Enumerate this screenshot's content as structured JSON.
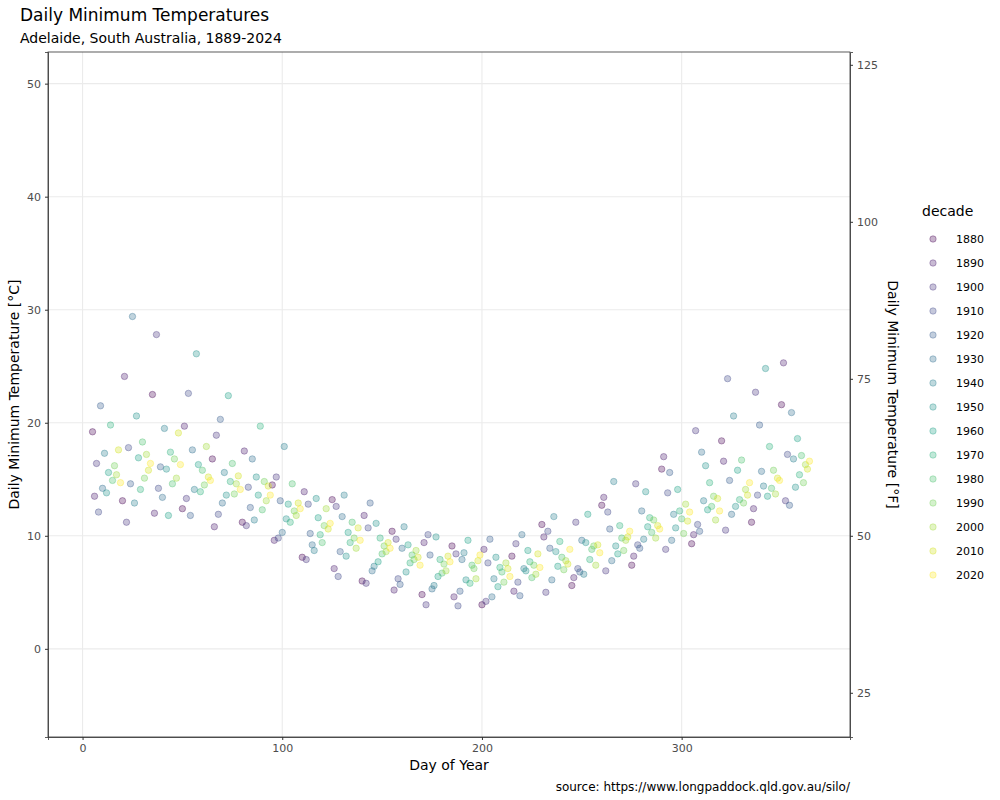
{
  "chart_data": {
    "type": "scatter",
    "title": "Daily Minimum Temperatures",
    "subtitle": "Adelaide, South Australia, 1889-2024",
    "x_label": "Day of Year",
    "y_label": "Daily Minimum Temperature [°C]",
    "y2_label": "Daily Minimum Temperature [°F]",
    "caption": "source: https://www.longpaddock.qld.gov.au/silo/",
    "legend_title": "decade",
    "legend": "right",
    "grid": true,
    "marker": "circle",
    "xlim": [
      -17.3,
      384.3
    ],
    "xticks": [
      0,
      100,
      200,
      300
    ],
    "ylim": [
      -7.8,
      52.8
    ],
    "yticks": [
      0,
      10,
      20,
      30,
      40,
      50
    ],
    "y2lim": [
      17.96,
      127.04
    ],
    "y2ticks": [
      25,
      50,
      75,
      100,
      125
    ],
    "series": [
      {
        "name": "1880",
        "color": "#440154",
        "x": [
          5,
          20,
          35,
          50,
          65,
          80,
          95,
          110,
          125,
          140,
          155,
          170,
          185,
          200,
          215,
          230,
          245,
          260,
          275,
          290,
          305,
          320,
          335,
          350
        ],
        "values": [
          19.2,
          13.1,
          22.5,
          12.4,
          16.8,
          11.2,
          14.5,
          8.1,
          13.2,
          6.0,
          10.4,
          4.8,
          9.1,
          3.9,
          8.2,
          11.0,
          5.6,
          12.7,
          7.4,
          15.9,
          9.3,
          18.4,
          11.2,
          21.6
        ]
      },
      {
        "name": "1890",
        "color": "#481B6D",
        "x": [
          6,
          21,
          36,
          51,
          66,
          81,
          96,
          111,
          126,
          141,
          156,
          171,
          186,
          201,
          216,
          231,
          246,
          261,
          276,
          291,
          306,
          321,
          336,
          351
        ],
        "values": [
          13.5,
          24.1,
          12.0,
          19.7,
          10.8,
          17.5,
          9.6,
          13.9,
          7.1,
          11.8,
          5.2,
          9.4,
          4.6,
          8.8,
          5.1,
          9.9,
          6.3,
          13.4,
          8.2,
          17.0,
          10.1,
          16.6,
          12.4,
          25.3
        ]
      },
      {
        "name": "1900",
        "color": "#46337E",
        "x": [
          7,
          22,
          37,
          52,
          67,
          82,
          97,
          112,
          127,
          142,
          157,
          172,
          187,
          202,
          217,
          232,
          247,
          262,
          277,
          292,
          307,
          322,
          337,
          352
        ],
        "values": [
          16.4,
          11.2,
          27.8,
          13.3,
          18.9,
          10.9,
          15.2,
          7.9,
          12.6,
          5.8,
          9.7,
          3.9,
          8.4,
          4.2,
          9.3,
          5.0,
          11.2,
          6.9,
          14.6,
          8.8,
          19.3,
          10.5,
          22.7,
          13.1
        ]
      },
      {
        "name": "1910",
        "color": "#3F4889",
        "x": [
          8,
          23,
          38,
          53,
          68,
          83,
          98,
          113,
          128,
          143,
          158,
          173,
          188,
          203,
          218,
          233,
          248,
          263,
          278,
          293,
          308,
          323,
          338,
          353
        ],
        "values": [
          12.1,
          17.8,
          14.2,
          22.6,
          11.9,
          14.3,
          9.8,
          12.8,
          6.4,
          10.7,
          6.2,
          10.1,
          3.8,
          7.6,
          5.9,
          10.4,
          7.1,
          12.1,
          9.2,
          13.8,
          11.0,
          23.9,
          13.6,
          17.2
        ]
      },
      {
        "name": "1920",
        "color": "#365C8D",
        "x": [
          9,
          24,
          39,
          54,
          69,
          84,
          99,
          114,
          129,
          144,
          159,
          174,
          189,
          204,
          219,
          234,
          249,
          264,
          279,
          294,
          309,
          324,
          339,
          354
        ],
        "values": [
          21.5,
          14.6,
          16.1,
          11.8,
          20.3,
          12.5,
          13.1,
          10.2,
          8.6,
          12.9,
          5.7,
          8.3,
          5.1,
          9.7,
          4.7,
          8.9,
          6.8,
          10.6,
          8.9,
          15.6,
          10.4,
          14.9,
          19.8,
          12.7
        ]
      },
      {
        "name": "1930",
        "color": "#2E6E8E",
        "x": [
          10,
          25,
          40,
          55,
          70,
          85,
          100,
          115,
          130,
          145,
          160,
          175,
          190,
          205,
          220,
          235,
          250,
          265,
          280,
          295,
          310,
          325,
          340,
          355
        ],
        "values": [
          14.2,
          29.4,
          13.4,
          17.6,
          12.9,
          16.8,
          10.3,
          9.2,
          11.7,
          6.9,
          8.9,
          5.3,
          7.9,
          4.6,
          10.1,
          6.1,
          9.6,
          7.8,
          12.2,
          9.6,
          17.4,
          11.9,
          15.7,
          20.9
        ]
      },
      {
        "name": "1940",
        "color": "#277F8E",
        "x": [
          11,
          26,
          41,
          56,
          71,
          86,
          101,
          116,
          131,
          146,
          161,
          176,
          191,
          206,
          221,
          236,
          251,
          266,
          281,
          296,
          311,
          326,
          341,
          356
        ],
        "values": [
          17.3,
          12.9,
          19.5,
          14.1,
          15.6,
          11.4,
          17.9,
          8.7,
          13.6,
          7.3,
          10.8,
          5.6,
          8.5,
          6.2,
          7.1,
          11.7,
          6.6,
          14.8,
          9.7,
          11.9,
          13.1,
          20.6,
          14.4,
          16.8
        ]
      },
      {
        "name": "1950",
        "color": "#21918C",
        "x": [
          12,
          27,
          42,
          57,
          72,
          87,
          102,
          117,
          132,
          147,
          162,
          177,
          192,
          207,
          222,
          237,
          252,
          267,
          282,
          297,
          312,
          327,
          342,
          357
        ],
        "values": [
          13.8,
          20.6,
          15.9,
          26.1,
          13.6,
          15.2,
          11.5,
          13.3,
          8.2,
          11.1,
          6.8,
          9.9,
          6.1,
          8.1,
          6.9,
          8.6,
          9.4,
          9.1,
          13.9,
          10.7,
          16.2,
          12.6,
          24.8,
          14.3
        ]
      },
      {
        "name": "1960",
        "color": "#1FA187",
        "x": [
          13,
          28,
          43,
          58,
          73,
          88,
          103,
          118,
          133,
          148,
          163,
          178,
          193,
          208,
          223,
          238,
          253,
          268,
          283,
          298,
          313,
          328,
          343,
          358
        ],
        "values": [
          15.6,
          16.9,
          11.8,
          16.3,
          22.4,
          13.6,
          12.8,
          11.6,
          10.3,
          7.7,
          9.2,
          6.4,
          9.6,
          5.5,
          8.7,
          7.3,
          11.9,
          8.4,
          10.8,
          14.1,
          12.3,
          15.8,
          13.5,
          18.6
        ]
      },
      {
        "name": "1970",
        "color": "#2DB27D",
        "x": [
          14,
          29,
          44,
          59,
          74,
          89,
          104,
          119,
          134,
          149,
          164,
          179,
          194,
          209,
          224,
          239,
          254,
          269,
          284,
          299,
          314,
          329,
          344,
          359
        ],
        "values": [
          19.8,
          14.1,
          17.4,
          13.9,
          14.8,
          19.7,
          11.2,
          10.1,
          9.4,
          9.8,
          7.6,
          7.9,
          5.8,
          7.2,
          7.7,
          9.5,
          7.9,
          10.9,
          11.6,
          12.2,
          14.7,
          13.2,
          17.9,
          15.4
        ]
      },
      {
        "name": "1980",
        "color": "#4AC16D",
        "x": [
          15,
          30,
          45,
          60,
          75,
          90,
          105,
          120,
          135,
          150,
          165,
          180,
          195,
          210,
          225,
          240,
          255,
          270,
          285,
          300,
          315,
          330,
          345,
          360
        ],
        "values": [
          14.9,
          18.3,
          14.6,
          15.8,
          16.4,
          12.3,
          14.6,
          9.4,
          11.2,
          8.4,
          8.3,
          6.7,
          7.4,
          6.8,
          6.3,
          8.1,
          8.8,
          9.8,
          10.3,
          11.5,
          12.6,
          16.7,
          14.2,
          17.1
        ]
      },
      {
        "name": "1990",
        "color": "#71CF57",
        "x": [
          16,
          31,
          46,
          61,
          76,
          91,
          106,
          121,
          136,
          151,
          166,
          181,
          196,
          211,
          226,
          241,
          256,
          271,
          286,
          301,
          316,
          331,
          346,
          361
        ],
        "values": [
          16.2,
          15.1,
          16.8,
          14.5,
          13.7,
          14.8,
          12.2,
          10.9,
          9.8,
          9.1,
          7.9,
          7.5,
          7.1,
          5.9,
          7.4,
          7.0,
          9.1,
          8.7,
          11.4,
          10.2,
          13.5,
          12.9,
          15.8,
          14.7
        ]
      },
      {
        "name": "2000",
        "color": "#A0DA39",
        "x": [
          17,
          32,
          47,
          62,
          77,
          92,
          107,
          122,
          137,
          152,
          167,
          182,
          197,
          212,
          227,
          242,
          257,
          272,
          287,
          302,
          317,
          332,
          347,
          362
        ],
        "values": [
          15.4,
          17.2,
          15.1,
          17.9,
          14.6,
          13.1,
          11.8,
          12.4,
          8.9,
          8.6,
          8.7,
          6.9,
          6.2,
          7.6,
          6.6,
          7.8,
          7.4,
          9.6,
          9.8,
          12.8,
          11.4,
          14.1,
          13.7,
          16.3
        ]
      },
      {
        "name": "2010",
        "color": "#D0E11C",
        "x": [
          18,
          33,
          48,
          63,
          78,
          93,
          108,
          123,
          138,
          153,
          168,
          183,
          198,
          213,
          228,
          243,
          258,
          273,
          288,
          303,
          318,
          333,
          348,
          363
        ],
        "values": [
          17.6,
          15.8,
          19.1,
          15.2,
          15.3,
          14.4,
          12.9,
          10.6,
          10.7,
          9.4,
          8.1,
          8.2,
          7.8,
          7.1,
          8.4,
          7.5,
          9.2,
          9.9,
          10.9,
          11.3,
          13.3,
          13.6,
          15.1,
          15.9
        ]
      },
      {
        "name": "2020",
        "color": "#FDE725",
        "x": [
          19,
          34,
          49,
          64,
          79,
          94,
          109,
          124,
          139,
          154,
          169,
          184,
          199,
          214,
          229,
          244,
          259,
          274,
          289,
          304,
          319,
          334,
          349,
          364
        ],
        "values": [
          14.7,
          16.4,
          16.3,
          14.9,
          14.1,
          13.6,
          12.4,
          11.1,
          9.6,
          8.9,
          7.4,
          7.7,
          8.3,
          6.4,
          7.2,
          8.8,
          8.5,
          10.4,
          10.6,
          12.1,
          12.2,
          14.7,
          14.9,
          16.6
        ]
      }
    ]
  }
}
